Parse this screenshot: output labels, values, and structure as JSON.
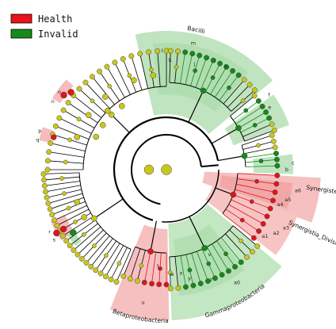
{
  "legend": [
    {
      "label": "Health",
      "color": "#e8141b"
    },
    {
      "label": "Invalid",
      "color": "#178a1c"
    }
  ],
  "colors": {
    "health_node": "#e0141a",
    "invalid_node": "#138a1a",
    "neutral_node": "#c9c61c",
    "health_band": "#f5b5b5",
    "invalid_band": "#a9dba9",
    "branch": "#000000"
  },
  "clades": {
    "bacilli": {
      "label": "Bacilli",
      "letters": [
        "m",
        "l",
        "k",
        "j",
        "i",
        "h"
      ]
    },
    "f_group": {
      "letters": [
        "f",
        "e"
      ]
    },
    "c_group": {
      "letters": [
        "c",
        "b"
      ]
    },
    "synergistetes": {
      "label": "Synergistetes",
      "letters": [
        "a6",
        "a5",
        "a4"
      ]
    },
    "synergistia": {
      "label": "Synergistia_Divisions",
      "letters": [
        "a3",
        "a2",
        "a1"
      ]
    },
    "gamma": {
      "label": "Gammaproteobacteria",
      "letters": [
        "z",
        "y",
        "x",
        "w",
        "v",
        "a0"
      ]
    },
    "beta": {
      "label": "Betaproteobacteria",
      "letters": [
        "u",
        "t"
      ]
    },
    "left_marks": {
      "letters": [
        "n",
        "o",
        "p",
        "q",
        "r",
        "s"
      ]
    }
  }
}
